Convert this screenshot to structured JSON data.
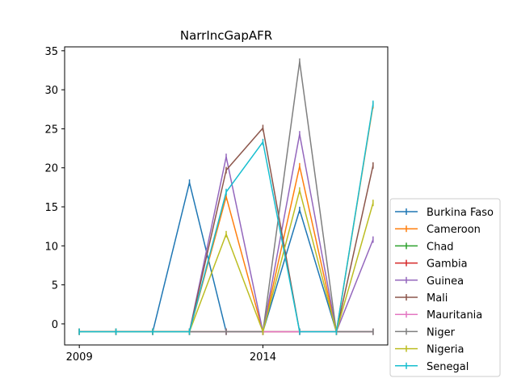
{
  "chart_data": {
    "type": "line",
    "title": "NarrIncGapAFR",
    "x": [
      2009,
      2010,
      2011,
      2012,
      2013,
      2014,
      2015,
      2016,
      2017
    ],
    "xticks": [
      2009,
      2014
    ],
    "yticks": [
      0,
      5,
      10,
      15,
      20,
      25,
      30,
      35
    ],
    "xlim": [
      2008.6,
      2017.4
    ],
    "ylim": [
      -2.7,
      35.5
    ],
    "grid": false,
    "legend_position": "outside-right-bottom",
    "series": [
      {
        "name": "Burkina Faso",
        "color": "#1f77b4",
        "values": [
          -1,
          -1,
          -1,
          18.1,
          -1,
          -1,
          14.6,
          -1,
          -1
        ]
      },
      {
        "name": "Cameroon",
        "color": "#ff7f0e",
        "values": [
          -1,
          -1,
          -1,
          -1,
          16.3,
          -1,
          20.2,
          -1,
          28.0
        ]
      },
      {
        "name": "Chad",
        "color": "#2ca02c",
        "values": [
          -1,
          -1,
          -1,
          -1,
          -1,
          -1,
          -1,
          -1,
          -1
        ]
      },
      {
        "name": "Gambia",
        "color": "#d62728",
        "values": [
          -1,
          -1,
          -1,
          -1,
          -1,
          -1,
          -1,
          -1,
          -1
        ]
      },
      {
        "name": "Guinea",
        "color": "#9467bd",
        "values": [
          -1,
          -1,
          -1,
          -1,
          21.4,
          -1,
          24.3,
          -1,
          10.8
        ]
      },
      {
        "name": "Mali",
        "color": "#8c564b",
        "values": [
          -1,
          -1,
          -1,
          -1,
          19.7,
          25.1,
          -1,
          -1,
          20.3
        ]
      },
      {
        "name": "Mauritania",
        "color": "#e377c2",
        "values": [
          -1,
          -1,
          -1,
          -1,
          -1,
          -1,
          -1,
          -1,
          -1
        ]
      },
      {
        "name": "Niger",
        "color": "#7f7f7f",
        "values": [
          -1,
          -1,
          -1,
          -1,
          -1,
          -1,
          33.6,
          -1,
          -1
        ]
      },
      {
        "name": "Nigeria",
        "color": "#bcbd22",
        "values": [
          -1,
          -1,
          -1,
          -1,
          11.5,
          -1,
          17.1,
          -1,
          15.5
        ]
      },
      {
        "name": "Senegal",
        "color": "#17becf",
        "values": [
          -1,
          -1,
          -1,
          -1,
          16.9,
          23.3,
          -1,
          -1,
          28.2
        ]
      }
    ]
  }
}
